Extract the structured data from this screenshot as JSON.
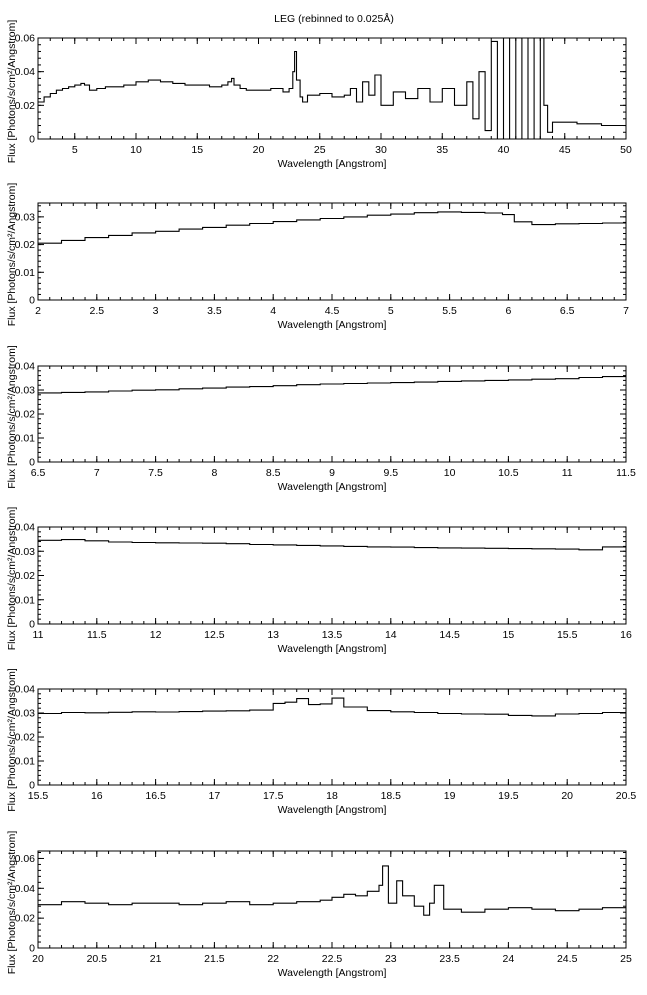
{
  "figure": {
    "title": "LEG (rebinned to 0.025Å)"
  },
  "chart_data": [
    {
      "type": "line",
      "title": "LEG (rebinned to 0.025Å)",
      "xlabel": "Wavelength [Angstrom]",
      "ylabel": "Flux [Photons/s/cm²/Angstrom]",
      "xlim": [
        2,
        50
      ],
      "ylim": [
        0,
        0.06
      ],
      "xticks": [
        5,
        10,
        15,
        20,
        25,
        30,
        35,
        40,
        45,
        50
      ],
      "yticks": [
        0,
        0.02,
        0.04,
        0.06
      ],
      "ytick_labels": [
        "0",
        "0.02",
        "0.04",
        "0.06"
      ],
      "grid": false,
      "series": [
        {
          "style": "steps",
          "x": [
            2,
            2.5,
            3,
            3.5,
            4,
            4.5,
            5,
            5.5,
            5.8,
            6.2,
            6.8,
            7.5,
            8,
            9,
            10,
            11,
            11.5,
            12,
            13,
            14,
            15,
            16,
            17,
            17.5,
            17.8,
            18,
            18.5,
            19,
            20,
            21,
            22,
            22.5,
            22.8,
            22.95,
            23.1,
            23.4,
            23.6,
            24,
            25,
            26,
            27,
            27.5,
            28,
            28.5,
            29,
            29.5,
            30,
            31,
            32,
            33,
            34,
            35,
            36,
            37,
            37.5,
            38,
            38.5,
            39,
            39.5,
            40,
            40.5,
            41,
            41.5,
            42,
            42.5,
            43,
            43.3,
            43.6,
            44,
            45,
            46,
            47,
            48,
            49,
            50
          ],
          "y": [
            0.022,
            0.025,
            0.027,
            0.029,
            0.03,
            0.031,
            0.032,
            0.033,
            0.032,
            0.029,
            0.03,
            0.031,
            0.031,
            0.032,
            0.034,
            0.035,
            0.035,
            0.034,
            0.033,
            0.032,
            0.032,
            0.031,
            0.032,
            0.034,
            0.036,
            0.032,
            0.03,
            0.029,
            0.029,
            0.03,
            0.028,
            0.03,
            0.04,
            0.052,
            0.035,
            0.025,
            0.022,
            0.026,
            0.027,
            0.025,
            0.026,
            0.03,
            0.022,
            0.034,
            0.026,
            0.038,
            0.02,
            0.028,
            0.024,
            0.03,
            0.022,
            0.03,
            0.02,
            0.034,
            0.012,
            0.04,
            0.005,
            0.058,
            0.0,
            0.06,
            0.0,
            0.06,
            0.0,
            0.06,
            0.0,
            0.06,
            0.02,
            0.004,
            0.01,
            0.01,
            0.009,
            0.009,
            0.008,
            0.008,
            0.007
          ]
        }
      ]
    },
    {
      "type": "line",
      "xlabel": "Wavelength [Angstrom]",
      "ylabel": "Flux [Photons/s/cm²/Angstrom]",
      "xlim": [
        2,
        7
      ],
      "ylim": [
        0,
        0.035
      ],
      "xticks": [
        2,
        2.5,
        3,
        3.5,
        4,
        4.5,
        5,
        5.5,
        6,
        6.5,
        7
      ],
      "xtick_labels": [
        "2",
        "2.5",
        "3",
        "3.5",
        "4",
        "4.5",
        "5",
        "5.5",
        "6",
        "6.5",
        "7"
      ],
      "yticks": [
        0,
        0.01,
        0.02,
        0.03
      ],
      "ytick_labels": [
        "0",
        "0.01",
        "0.02",
        "0.03"
      ],
      "grid": false,
      "series": [
        {
          "style": "steps",
          "x": [
            2.0,
            2.2,
            2.4,
            2.6,
            2.8,
            3.0,
            3.2,
            3.4,
            3.6,
            3.8,
            4.0,
            4.2,
            4.4,
            4.6,
            4.8,
            5.0,
            5.2,
            5.4,
            5.6,
            5.8,
            5.95,
            6.05,
            6.2,
            6.4,
            6.6,
            6.8,
            7.0
          ],
          "y": [
            0.0205,
            0.0215,
            0.0225,
            0.0233,
            0.0242,
            0.0248,
            0.0256,
            0.0262,
            0.027,
            0.0276,
            0.0283,
            0.0289,
            0.0294,
            0.03,
            0.0306,
            0.031,
            0.0315,
            0.0318,
            0.0316,
            0.0314,
            0.0308,
            0.0282,
            0.0272,
            0.0275,
            0.0276,
            0.0278,
            0.028
          ]
        }
      ]
    },
    {
      "type": "line",
      "xlabel": "Wavelength [Angstrom]",
      "ylabel": "Flux [Photons/s/cm²/Angstrom]",
      "xlim": [
        6.5,
        11.5
      ],
      "ylim": [
        0,
        0.04
      ],
      "xticks": [
        6.5,
        7,
        7.5,
        8,
        8.5,
        9,
        9.5,
        10,
        10.5,
        11,
        11.5
      ],
      "xtick_labels": [
        "6.5",
        "7",
        "7.5",
        "8",
        "8.5",
        "9",
        "9.5",
        "10",
        "10.5",
        "11",
        "11.5"
      ],
      "yticks": [
        0,
        0.01,
        0.02,
        0.03,
        0.04
      ],
      "ytick_labels": [
        "0",
        "0.01",
        "0.02",
        "0.03",
        "0.04"
      ],
      "grid": false,
      "series": [
        {
          "style": "steps",
          "x": [
            6.5,
            6.7,
            6.9,
            7.1,
            7.3,
            7.5,
            7.7,
            7.9,
            8.1,
            8.3,
            8.5,
            8.7,
            8.9,
            9.1,
            9.3,
            9.5,
            9.7,
            9.9,
            10.1,
            10.3,
            10.5,
            10.7,
            10.9,
            11.1,
            11.3,
            11.5
          ],
          "y": [
            0.0288,
            0.029,
            0.0292,
            0.0296,
            0.0299,
            0.0301,
            0.0305,
            0.0308,
            0.0312,
            0.0314,
            0.0318,
            0.0322,
            0.0325,
            0.0327,
            0.0329,
            0.0331,
            0.0333,
            0.0336,
            0.0338,
            0.034,
            0.0342,
            0.0345,
            0.0347,
            0.0352,
            0.0356,
            0.0353
          ]
        }
      ]
    },
    {
      "type": "line",
      "xlabel": "Wavelength [Angstrom]",
      "ylabel": "Flux [Photons/s/cm²/Angstrom]",
      "xlim": [
        11,
        16
      ],
      "ylim": [
        0,
        0.04
      ],
      "xticks": [
        11,
        11.5,
        12,
        12.5,
        13,
        13.5,
        14,
        14.5,
        15,
        15.5,
        16
      ],
      "xtick_labels": [
        "11",
        "11.5",
        "12",
        "12.5",
        "13",
        "13.5",
        "14",
        "14.5",
        "15",
        "15.5",
        "16"
      ],
      "yticks": [
        0,
        0.01,
        0.02,
        0.03,
        0.04
      ],
      "ytick_labels": [
        "0",
        "0.01",
        "0.02",
        "0.03",
        "0.04"
      ],
      "grid": false,
      "series": [
        {
          "style": "steps",
          "x": [
            11.0,
            11.2,
            11.4,
            11.6,
            11.8,
            12.0,
            12.2,
            12.4,
            12.6,
            12.8,
            13.0,
            13.2,
            13.4,
            13.6,
            13.8,
            14.0,
            14.2,
            14.4,
            14.6,
            14.8,
            15.0,
            15.2,
            15.4,
            15.6,
            15.8,
            16.0
          ],
          "y": [
            0.0345,
            0.0348,
            0.0343,
            0.0338,
            0.0336,
            0.0335,
            0.0334,
            0.0333,
            0.0331,
            0.0328,
            0.0326,
            0.0324,
            0.0322,
            0.032,
            0.0318,
            0.0317,
            0.0315,
            0.0314,
            0.0313,
            0.0312,
            0.0311,
            0.031,
            0.0309,
            0.0306,
            0.0318,
            0.0305
          ]
        }
      ]
    },
    {
      "type": "line",
      "xlabel": "Wavelength [Angstrom]",
      "ylabel": "Flux [Photons/s/cm²/Angstrom]",
      "xlim": [
        15.5,
        20.5
      ],
      "ylim": [
        0,
        0.04
      ],
      "xticks": [
        15.5,
        16,
        16.5,
        17,
        17.5,
        18,
        18.5,
        19,
        19.5,
        20,
        20.5
      ],
      "xtick_labels": [
        "15.5",
        "16",
        "16.5",
        "17",
        "17.5",
        "18",
        "18.5",
        "19",
        "19.5",
        "20",
        "20.5"
      ],
      "yticks": [
        0,
        0.01,
        0.02,
        0.03,
        0.04
      ],
      "ytick_labels": [
        "0",
        "0.01",
        "0.02",
        "0.03",
        "0.04"
      ],
      "grid": false,
      "series": [
        {
          "style": "steps",
          "x": [
            15.5,
            15.7,
            15.9,
            16.1,
            16.3,
            16.5,
            16.7,
            16.9,
            17.1,
            17.3,
            17.5,
            17.6,
            17.7,
            17.8,
            17.9,
            18.0,
            18.1,
            18.3,
            18.5,
            18.7,
            18.9,
            19.1,
            19.3,
            19.5,
            19.7,
            19.9,
            20.1,
            20.3,
            20.5
          ],
          "y": [
            0.0298,
            0.0302,
            0.0301,
            0.0303,
            0.0305,
            0.0304,
            0.0306,
            0.0308,
            0.0309,
            0.0312,
            0.034,
            0.0345,
            0.036,
            0.0335,
            0.0338,
            0.0362,
            0.0325,
            0.031,
            0.0305,
            0.0302,
            0.0298,
            0.0296,
            0.0295,
            0.029,
            0.0288,
            0.0296,
            0.0298,
            0.0302,
            0.028
          ]
        }
      ]
    },
    {
      "type": "line",
      "xlabel": "Wavelength [Angstrom]",
      "ylabel": "Flux [Photons/s/cm²/Angstrom]",
      "xlim": [
        20,
        25
      ],
      "ylim": [
        0,
        0.065
      ],
      "xticks": [
        20,
        20.5,
        21,
        21.5,
        22,
        22.5,
        23,
        23.5,
        24,
        24.5,
        25
      ],
      "xtick_labels": [
        "20",
        "20.5",
        "21",
        "21.5",
        "22",
        "22.5",
        "23",
        "23.5",
        "24",
        "24.5",
        "25"
      ],
      "yticks": [
        0,
        0.02,
        0.04,
        0.06
      ],
      "ytick_labels": [
        "0",
        "0.02",
        "0.04",
        "0.06"
      ],
      "grid": false,
      "series": [
        {
          "style": "steps",
          "x": [
            20.0,
            20.2,
            20.4,
            20.6,
            20.8,
            21.0,
            21.2,
            21.4,
            21.6,
            21.8,
            22.0,
            22.2,
            22.4,
            22.5,
            22.6,
            22.7,
            22.8,
            22.9,
            22.93,
            22.98,
            23.05,
            23.1,
            23.2,
            23.28,
            23.33,
            23.37,
            23.45,
            23.6,
            23.8,
            24.0,
            24.2,
            24.4,
            24.6,
            24.8,
            25.0
          ],
          "y": [
            0.029,
            0.031,
            0.03,
            0.029,
            0.03,
            0.03,
            0.029,
            0.03,
            0.031,
            0.029,
            0.03,
            0.031,
            0.032,
            0.034,
            0.036,
            0.035,
            0.038,
            0.042,
            0.055,
            0.03,
            0.045,
            0.035,
            0.028,
            0.022,
            0.03,
            0.042,
            0.026,
            0.024,
            0.026,
            0.027,
            0.026,
            0.025,
            0.026,
            0.027,
            0.025
          ]
        }
      ]
    }
  ]
}
